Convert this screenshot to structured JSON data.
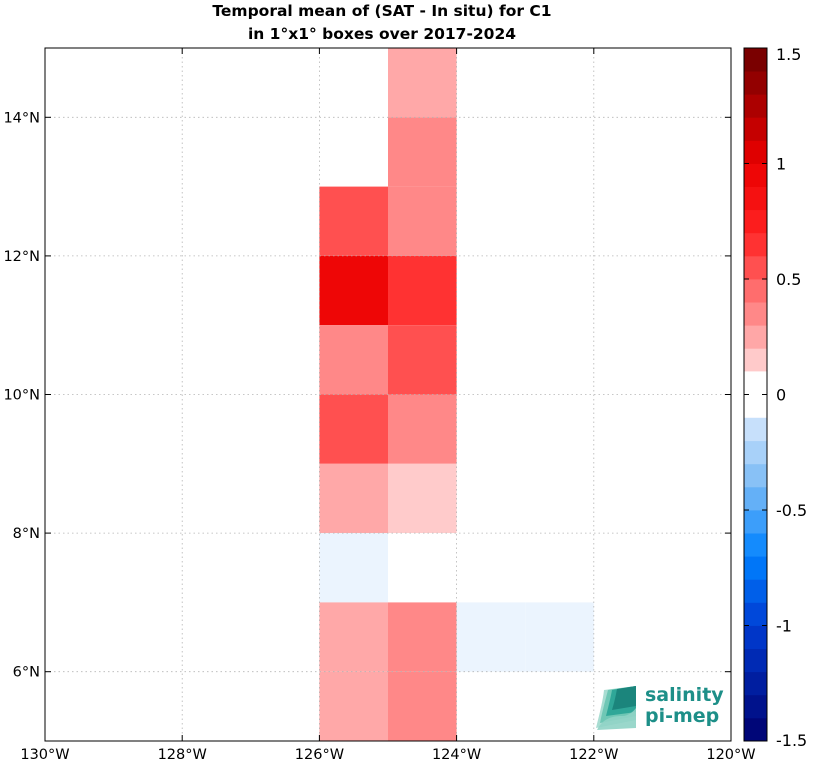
{
  "chart_data": {
    "type": "heatmap",
    "title_line1": "Temporal mean of (SAT - In situ) for C1",
    "title_line2": "in 1°x1° boxes over 2017-2024",
    "xlim": [
      -130,
      -120
    ],
    "ylim": [
      5,
      15
    ],
    "x_ticks": [
      {
        "value": -130,
        "label": "130°W"
      },
      {
        "value": -128,
        "label": "128°W"
      },
      {
        "value": -126,
        "label": "126°W"
      },
      {
        "value": -124,
        "label": "124°W"
      },
      {
        "value": -122,
        "label": "122°W"
      },
      {
        "value": -120,
        "label": "120°W"
      }
    ],
    "y_ticks": [
      {
        "value": 6,
        "label": "6°N"
      },
      {
        "value": 8,
        "label": "8°N"
      },
      {
        "value": 10,
        "label": "10°N"
      },
      {
        "value": 12,
        "label": "12°N"
      },
      {
        "value": 14,
        "label": "14°N"
      }
    ],
    "grid": true,
    "cells": [
      {
        "lon": -125,
        "lat": 14,
        "value": 0.25
      },
      {
        "lon": -125,
        "lat": 13,
        "value": 0.35
      },
      {
        "lon": -126,
        "lat": 12,
        "value": 0.55
      },
      {
        "lon": -125,
        "lat": 12,
        "value": 0.35
      },
      {
        "lon": -126,
        "lat": 11,
        "value": 0.9
      },
      {
        "lon": -125,
        "lat": 11,
        "value": 0.7
      },
      {
        "lon": -126,
        "lat": 10,
        "value": 0.35
      },
      {
        "lon": -125,
        "lat": 10,
        "value": 0.55
      },
      {
        "lon": -126,
        "lat": 9,
        "value": 0.6
      },
      {
        "lon": -125,
        "lat": 9,
        "value": 0.35
      },
      {
        "lon": -126,
        "lat": 8,
        "value": 0.25
      },
      {
        "lon": -125,
        "lat": 8,
        "value": 0.15
      },
      {
        "lon": -126,
        "lat": 7,
        "value": -0.1
      },
      {
        "lon": -125,
        "lat": 7,
        "value": 0.0
      },
      {
        "lon": -126,
        "lat": 6,
        "value": 0.25
      },
      {
        "lon": -125,
        "lat": 6,
        "value": 0.35
      },
      {
        "lon": -126,
        "lat": 5,
        "value": 0.25
      },
      {
        "lon": -125,
        "lat": 5,
        "value": 0.35
      },
      {
        "lon": -124,
        "lat": 6,
        "value": -0.1
      },
      {
        "lon": -123,
        "lat": 6,
        "value": -0.1
      }
    ],
    "colorbar": {
      "range": [
        -1.5,
        1.5
      ],
      "step": 0.1,
      "ticks": [
        {
          "value": 1.5,
          "label": "1.5"
        },
        {
          "value": 1,
          "label": "1"
        },
        {
          "value": 0.5,
          "label": "0.5"
        },
        {
          "value": 0,
          "label": "0"
        },
        {
          "value": -0.5,
          "label": "-0.5"
        },
        {
          "value": -1,
          "label": "-1"
        },
        {
          "value": -1.5,
          "label": "-1.5"
        }
      ]
    }
  },
  "logo": {
    "line1": "salinity",
    "line2": "pi-mep"
  }
}
